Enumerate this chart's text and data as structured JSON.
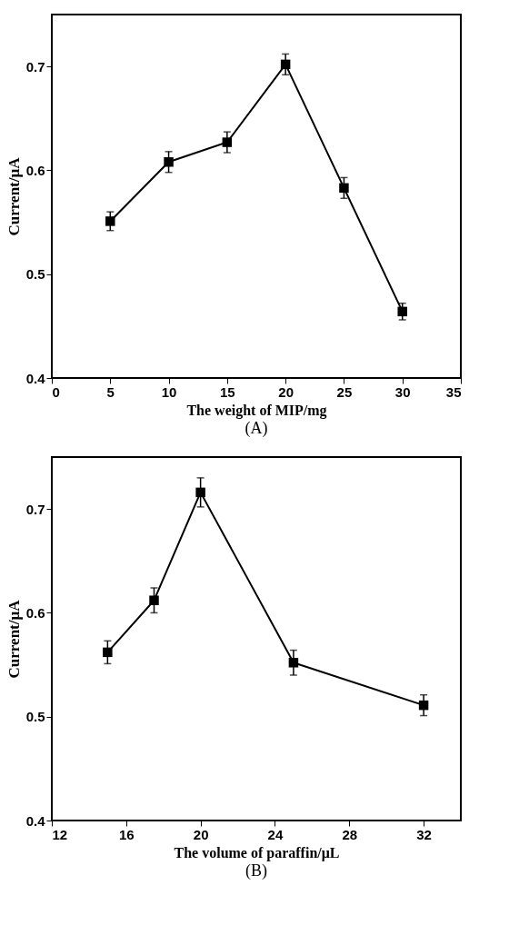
{
  "chart_data": [
    {
      "type": "line",
      "title": "(A)",
      "xlabel": "The weight of MIP/mg",
      "ylabel": "Current/μA",
      "x": [
        5,
        10,
        15,
        20,
        25,
        30
      ],
      "series": [
        {
          "color": "#000000",
          "values": [
            0.551,
            0.608,
            0.627,
            0.702,
            0.583,
            0.464
          ],
          "errors": [
            0.009,
            0.01,
            0.01,
            0.01,
            0.01,
            0.008
          ]
        }
      ],
      "xlim": [
        0,
        35
      ],
      "xticks": [
        0,
        5,
        10,
        15,
        20,
        25,
        30,
        35
      ],
      "ylim": [
        0.4,
        0.75
      ],
      "yticks": [
        0.4,
        0.5,
        0.6,
        0.7
      ],
      "grid": false,
      "marker": "square",
      "line_style": "solid"
    },
    {
      "type": "line",
      "title": "(B)",
      "xlabel": "The volume of paraffin/μL",
      "ylabel": "Current/μA",
      "x": [
        15,
        17.5,
        20,
        25,
        32
      ],
      "series": [
        {
          "color": "#000000",
          "values": [
            0.562,
            0.612,
            0.716,
            0.552,
            0.511
          ],
          "errors": [
            0.011,
            0.012,
            0.014,
            0.012,
            0.01
          ]
        }
      ],
      "xlim": [
        12,
        34
      ],
      "xticks": [
        12,
        16,
        20,
        24,
        28,
        32
      ],
      "ylim": [
        0.4,
        0.75
      ],
      "yticks": [
        0.4,
        0.5,
        0.6,
        0.7
      ],
      "grid": false,
      "marker": "square",
      "line_style": "solid"
    }
  ]
}
